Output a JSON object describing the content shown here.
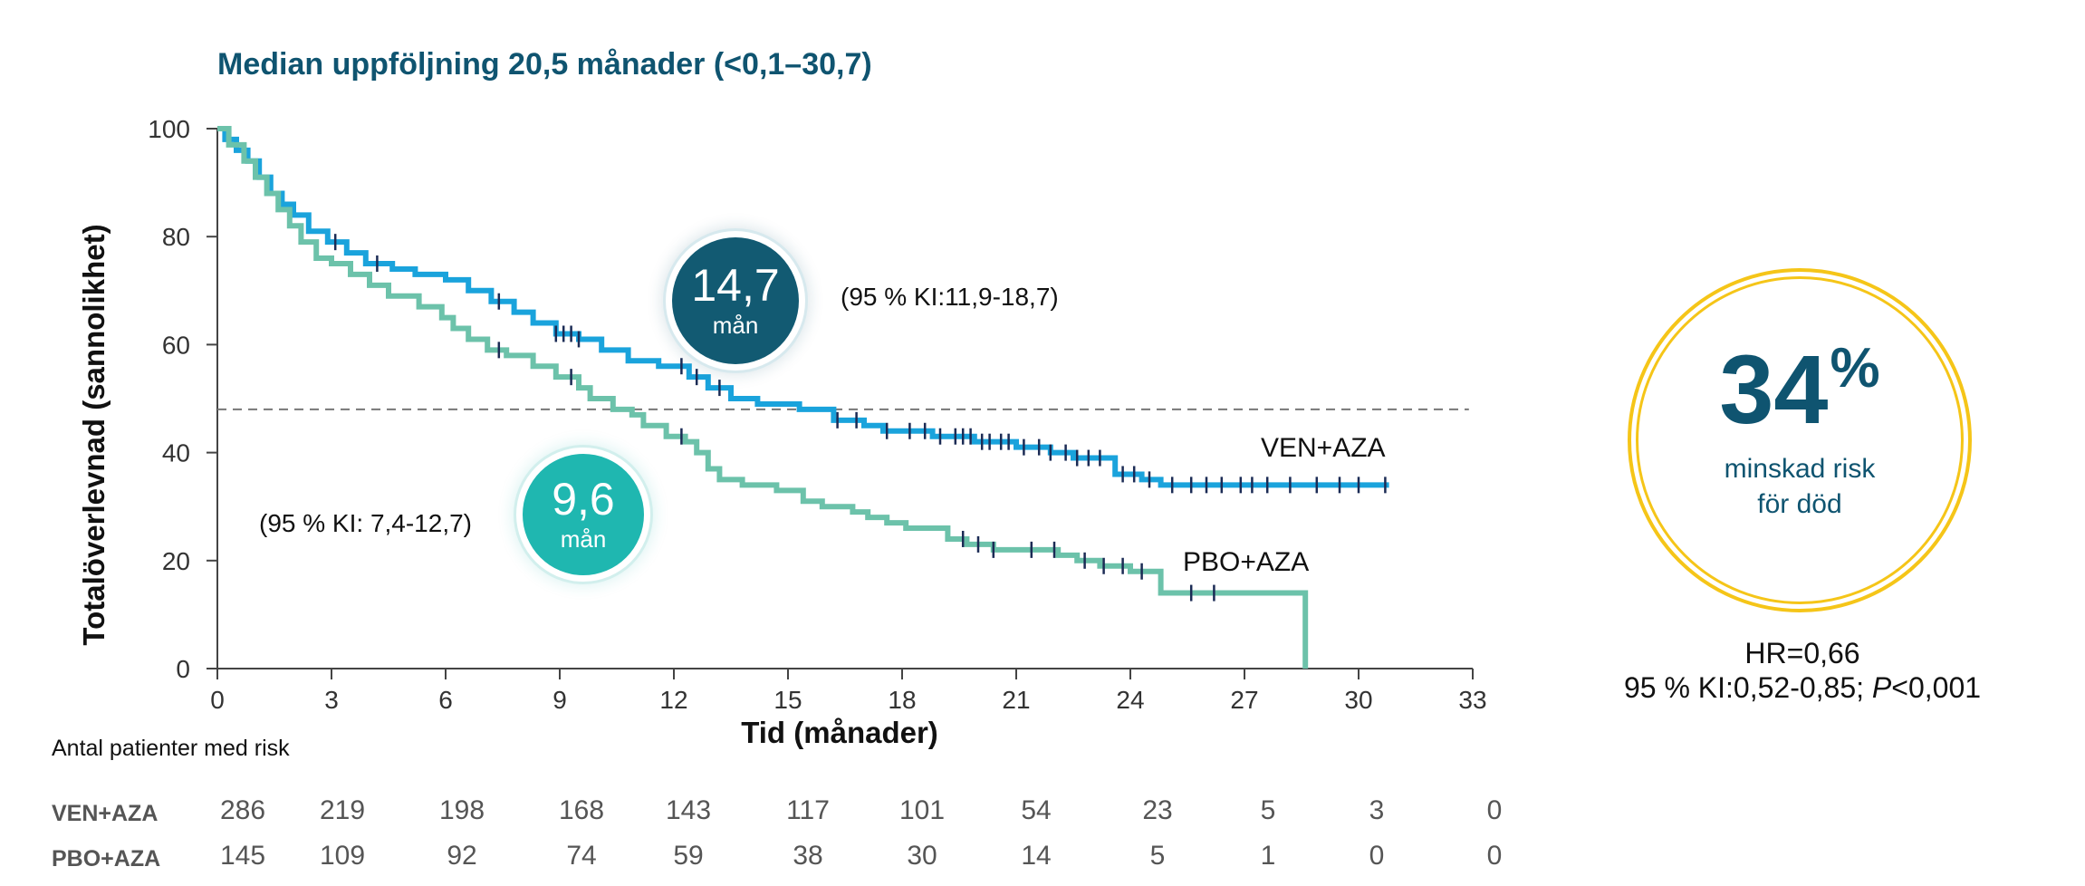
{
  "title": "Median uppföljning 20,5 månader (<0,1–30,7)",
  "chart_data": {
    "type": "line",
    "xlabel": "Tid (månader)",
    "ylabel": "Totalöverlevnad (sannolikhet)",
    "xlim": [
      0,
      33
    ],
    "ylim": [
      0,
      100
    ],
    "xticks": [
      "0",
      "3",
      "6",
      "9",
      "12",
      "15",
      "18",
      "21",
      "24",
      "27",
      "30",
      "33"
    ],
    "yticks": [
      "0",
      "20",
      "40",
      "60",
      "80",
      "100"
    ],
    "median_reference_y": 48,
    "series": [
      {
        "name": "VEN+AZA",
        "color": "#1aa3dc",
        "points": [
          [
            0,
            100
          ],
          [
            0.2,
            98
          ],
          [
            0.5,
            96
          ],
          [
            0.8,
            94
          ],
          [
            1.1,
            91
          ],
          [
            1.4,
            88
          ],
          [
            1.7,
            86
          ],
          [
            2.0,
            84
          ],
          [
            2.4,
            81
          ],
          [
            2.9,
            79
          ],
          [
            3.4,
            77
          ],
          [
            3.9,
            75
          ],
          [
            4.6,
            74
          ],
          [
            5.2,
            73
          ],
          [
            6.0,
            72
          ],
          [
            6.6,
            70
          ],
          [
            7.2,
            68
          ],
          [
            7.8,
            66
          ],
          [
            8.3,
            64
          ],
          [
            8.9,
            62
          ],
          [
            9.5,
            61
          ],
          [
            10.1,
            59
          ],
          [
            10.8,
            57
          ],
          [
            11.6,
            56
          ],
          [
            12.4,
            54
          ],
          [
            12.9,
            52
          ],
          [
            13.5,
            50
          ],
          [
            14.2,
            49
          ],
          [
            15.3,
            48
          ],
          [
            16.2,
            46
          ],
          [
            17.0,
            45
          ],
          [
            17.5,
            44
          ],
          [
            18.8,
            43
          ],
          [
            19.9,
            42
          ],
          [
            21.0,
            41
          ],
          [
            21.9,
            40
          ],
          [
            22.5,
            39
          ],
          [
            23.6,
            36
          ],
          [
            24.3,
            35
          ],
          [
            24.8,
            34
          ],
          [
            30.8,
            34
          ]
        ],
        "censor_ticks": [
          3.1,
          4.2,
          7.4,
          8.9,
          9.1,
          9.3,
          9.5,
          12.2,
          12.6,
          13.2,
          16.3,
          16.8,
          17.6,
          18.2,
          18.6,
          19.0,
          19.4,
          19.6,
          19.8,
          20.1,
          20.3,
          20.6,
          20.8,
          21.2,
          21.6,
          21.9,
          22.3,
          22.6,
          22.9,
          23.2,
          23.8,
          24.1,
          24.5,
          25.1,
          25.6,
          26.0,
          26.4,
          26.9,
          27.2,
          27.6,
          28.2,
          28.9,
          29.5,
          30.0,
          30.7
        ]
      },
      {
        "name": "PBO+AZA",
        "color": "#6cc2aa",
        "points": [
          [
            0,
            100
          ],
          [
            0.3,
            97
          ],
          [
            0.7,
            94
          ],
          [
            1.0,
            91
          ],
          [
            1.3,
            88
          ],
          [
            1.6,
            85
          ],
          [
            1.9,
            82
          ],
          [
            2.2,
            79
          ],
          [
            2.6,
            76
          ],
          [
            3.0,
            75
          ],
          [
            3.5,
            73
          ],
          [
            4.0,
            71
          ],
          [
            4.5,
            69
          ],
          [
            5.3,
            67
          ],
          [
            5.9,
            65
          ],
          [
            6.2,
            63
          ],
          [
            6.6,
            61
          ],
          [
            7.1,
            59
          ],
          [
            7.6,
            58
          ],
          [
            8.3,
            56
          ],
          [
            8.9,
            54
          ],
          [
            9.5,
            52
          ],
          [
            9.8,
            50
          ],
          [
            10.4,
            48
          ],
          [
            10.9,
            47
          ],
          [
            11.2,
            45
          ],
          [
            11.8,
            43
          ],
          [
            12.3,
            42
          ],
          [
            12.6,
            40
          ],
          [
            12.9,
            37
          ],
          [
            13.2,
            35
          ],
          [
            13.8,
            34
          ],
          [
            14.7,
            33
          ],
          [
            15.4,
            31
          ],
          [
            15.9,
            30
          ],
          [
            16.7,
            29
          ],
          [
            17.1,
            28
          ],
          [
            17.6,
            27
          ],
          [
            18.1,
            26
          ],
          [
            18.8,
            26
          ],
          [
            19.2,
            24
          ],
          [
            19.7,
            23
          ],
          [
            20.4,
            22
          ],
          [
            21.3,
            22
          ],
          [
            22.1,
            21
          ],
          [
            22.6,
            20
          ],
          [
            23.2,
            19
          ],
          [
            24.0,
            18
          ],
          [
            24.8,
            18
          ],
          [
            24.8,
            14
          ],
          [
            28.6,
            14
          ],
          [
            28.6,
            0
          ]
        ],
        "censor_ticks": [
          7.4,
          9.3,
          12.2,
          19.6,
          20.0,
          20.4,
          21.4,
          22.0,
          22.8,
          23.3,
          23.8,
          24.3,
          25.6,
          26.2
        ]
      }
    ],
    "annotations": {
      "ven_median_value": "14,7",
      "ven_median_unit": "mån",
      "ven_ci": "(95 % KI:11,9-18,7)",
      "pbo_median_value": "9,6",
      "pbo_median_unit": "mån",
      "pbo_ci": "(95 % KI: 7,4-12,7)"
    }
  },
  "risk_reduction": {
    "percent": "34",
    "percent_sign": "%",
    "line1": "minskad risk",
    "line2": "för död"
  },
  "hazard": {
    "hr": "HR=0,66",
    "ci_text": "95 % KI:0,52-0,85; ",
    "p_label": "P",
    "p_value": "<0,001"
  },
  "risk_table": {
    "heading": "Antal patienter med risk",
    "rows": [
      {
        "label": "VEN+AZA",
        "values": [
          "286",
          "219",
          "198",
          "168",
          "143",
          "117",
          "101",
          "54",
          "23",
          "5",
          "3",
          "0"
        ]
      },
      {
        "label": "PBO+AZA",
        "values": [
          "145",
          "109",
          "92",
          "74",
          "59",
          "38",
          "30",
          "14",
          "5",
          "1",
          "0",
          "0"
        ]
      }
    ]
  }
}
